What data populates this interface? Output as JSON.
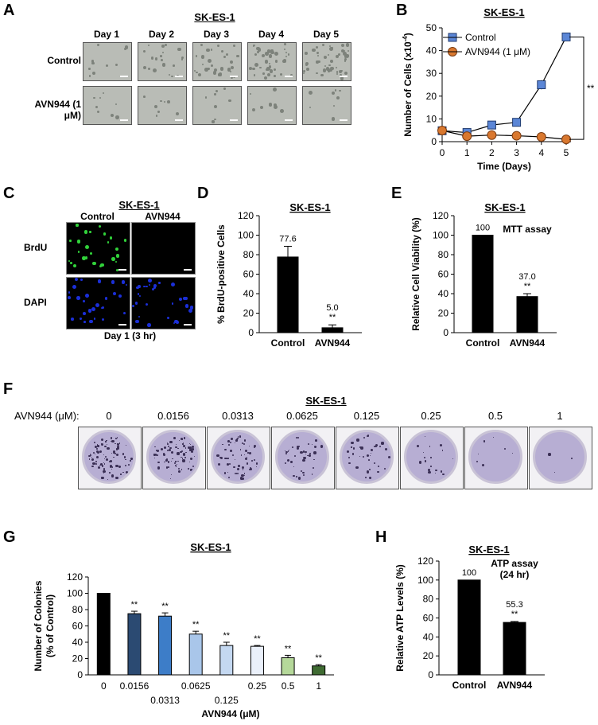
{
  "panels": {
    "A": {
      "letter": "A",
      "title": "SK-ES-1",
      "days": [
        "Day 1",
        "Day 2",
        "Day 3",
        "Day 4",
        "Day 5"
      ],
      "rows": [
        "Control",
        "AVN944 (1 μM)"
      ]
    },
    "C": {
      "letter": "C",
      "title": "SK-ES-1",
      "columns": [
        "Control",
        "AVN944"
      ],
      "rows": [
        "BrdU",
        "DAPI"
      ],
      "caption": "Day 1 (3 hr)",
      "colors": {
        "brdu": "#31d23a",
        "dapi": "#1b2fd8"
      }
    },
    "F": {
      "letter": "F",
      "title": "SK-ES-1",
      "axis_label": "AVN944 (μM):",
      "concentrations": [
        "0",
        "0.0156",
        "0.0313",
        "0.0625",
        "0.125",
        "0.25",
        "0.5",
        "1"
      ],
      "colony_density": [
        1.0,
        0.9,
        0.75,
        0.45,
        0.4,
        0.2,
        0.08,
        0.03
      ]
    }
  },
  "chart_data": [
    {
      "id": "B",
      "letter": "B",
      "type": "line",
      "title": "SK-ES-1",
      "xlabel": "Time (Days)",
      "ylabel": "Number of Cells (x10",
      "ylabel_sup": "-4",
      "ylabel_end": ")",
      "xlim": [
        0,
        5
      ],
      "ylim": [
        0,
        50
      ],
      "xticks": [
        0,
        1,
        2,
        3,
        4,
        5
      ],
      "yticks": [
        0,
        10,
        20,
        30,
        40,
        50
      ],
      "x": [
        0,
        1,
        2,
        3,
        4,
        5
      ],
      "series": [
        {
          "name": "Control",
          "marker": "square",
          "color": "#5b86d6",
          "values": [
            4.8,
            4.0,
            7.3,
            8.5,
            25.0,
            46.0
          ],
          "errors": [
            0.5,
            0.5,
            0.6,
            0.7,
            2.0,
            0.8
          ]
        },
        {
          "name": "AVN944 (1 μM)",
          "marker": "circle",
          "color": "#d9782f",
          "values": [
            4.9,
            2.4,
            2.9,
            2.6,
            2.1,
            1.0
          ],
          "errors": [
            0.4,
            0.3,
            0.3,
            0.3,
            0.3,
            0.2
          ]
        }
      ],
      "significance": "**",
      "legend": "top-left"
    },
    {
      "id": "D",
      "letter": "D",
      "type": "bar",
      "title": "SK-ES-1",
      "ylabel": "% BrdU-positive Cells",
      "ylim": [
        0,
        120
      ],
      "yticks": [
        0,
        20,
        40,
        60,
        80,
        100,
        120
      ],
      "categories": [
        "Control",
        "AVN944"
      ],
      "values": [
        77.6,
        5.0
      ],
      "errors": [
        11,
        3
      ],
      "data_labels": [
        "77.6",
        "5.0"
      ],
      "significance": [
        "",
        "**"
      ],
      "colors": [
        "#000000",
        "#000000"
      ]
    },
    {
      "id": "E",
      "letter": "E",
      "type": "bar",
      "title": "SK-ES-1",
      "annotation": "MTT assay",
      "ylabel": "Relative Cell Viability (%)",
      "ylim": [
        0,
        120
      ],
      "yticks": [
        0,
        20,
        40,
        60,
        80,
        100,
        120
      ],
      "categories": [
        "Control",
        "AVN944"
      ],
      "values": [
        100,
        37.0
      ],
      "errors": [
        0,
        3
      ],
      "data_labels": [
        "100",
        "37.0"
      ],
      "significance": [
        "",
        "**"
      ],
      "colors": [
        "#000000",
        "#000000"
      ]
    },
    {
      "id": "G",
      "letter": "G",
      "type": "bar",
      "title": "SK-ES-1",
      "ylabel": "Number of Colonies",
      "ylabel2": "(% of Control)",
      "xlabel": "AVN944 (μM)",
      "ylim": [
        0,
        120
      ],
      "yticks": [
        0,
        20,
        40,
        60,
        80,
        100,
        120
      ],
      "categories": [
        "0",
        "0.0156",
        "0.0313",
        "0.0625",
        "0.125",
        "0.25",
        "0.5",
        "1"
      ],
      "category_row": [
        0,
        0,
        1,
        0,
        1,
        0,
        0,
        0
      ],
      "values": [
        100,
        75,
        72,
        50,
        36,
        35,
        21,
        11
      ],
      "errors": [
        0,
        3,
        4,
        3.5,
        4,
        1,
        3,
        1.5
      ],
      "significance": [
        "",
        "**",
        "**",
        "**",
        "**",
        "**",
        "**",
        "**"
      ],
      "colors": [
        "#000000",
        "#2b4a72",
        "#3d7dc8",
        "#a9c6ea",
        "#c4d8f1",
        "#eaf0fa",
        "#b5d89a",
        "#3f6b32"
      ]
    },
    {
      "id": "H",
      "letter": "H",
      "type": "bar",
      "title": "SK-ES-1",
      "annotation": "ATP assay",
      "annotation2": "(24 hr)",
      "ylabel": "Relative ATP Levels (%)",
      "ylim": [
        0,
        120
      ],
      "yticks": [
        0,
        20,
        40,
        60,
        80,
        100,
        120
      ],
      "categories": [
        "Control",
        "AVN944"
      ],
      "values": [
        100,
        55.3
      ],
      "errors": [
        0,
        1
      ],
      "data_labels": [
        "100",
        "55.3"
      ],
      "significance": [
        "",
        "**"
      ],
      "colors": [
        "#000000",
        "#000000"
      ]
    }
  ]
}
